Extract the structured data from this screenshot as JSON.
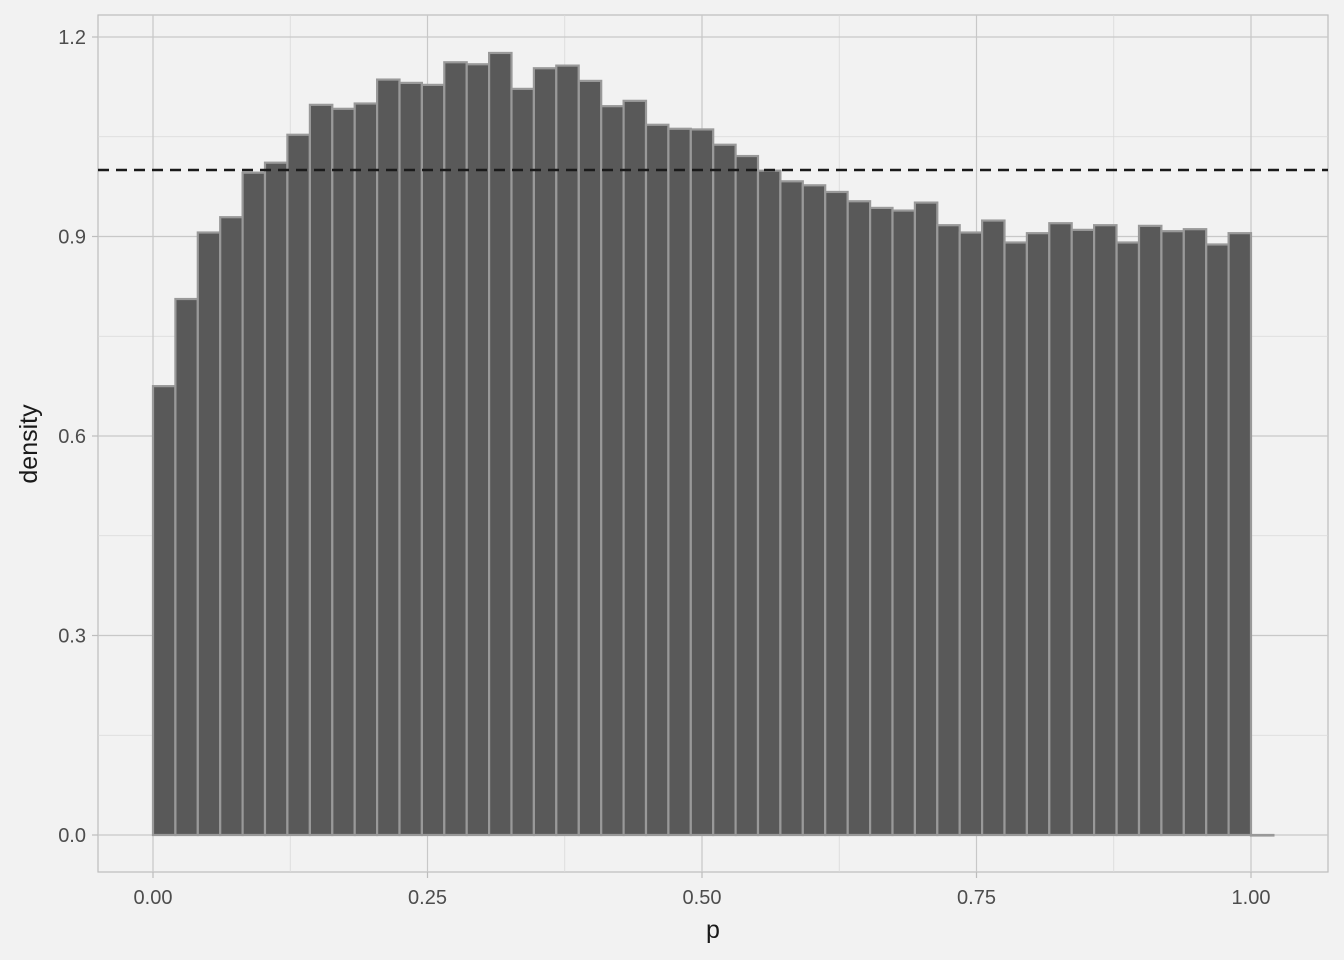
{
  "chart_data": {
    "type": "bar",
    "subtype": "histogram",
    "title": "",
    "xlabel": "p",
    "ylabel": "density",
    "xlim": [
      -0.1,
      2.725
    ],
    "ylim": [
      -0.06,
      1.23
    ],
    "x_ticks": [
      "0.00",
      "0.25",
      "0.50",
      "0.75",
      "1.00"
    ],
    "x_tick_values": [
      0.0,
      0.25,
      0.5,
      0.75,
      1.0
    ],
    "y_ticks": [
      "0.0",
      "0.3",
      "0.6",
      "0.9",
      "1.2"
    ],
    "y_tick_values": [
      0.0,
      0.3,
      0.6,
      0.9,
      1.2
    ],
    "bin_width": 0.0204,
    "bin_starts": [
      0.0,
      0.0204,
      0.0408,
      0.0612,
      0.0816,
      0.102,
      0.1224,
      0.1429,
      0.1633,
      0.1837,
      0.2041,
      0.2245,
      0.2449,
      0.2653,
      0.2857,
      0.3061,
      0.3265,
      0.3469,
      0.3673,
      0.3878,
      0.4082,
      0.4286,
      0.449,
      0.4694,
      0.4898,
      0.5102,
      0.5306,
      0.551,
      0.5714,
      0.5918,
      0.6122,
      0.6327,
      0.6531,
      0.6735,
      0.6939,
      0.7143,
      0.7347,
      0.7551,
      0.7755,
      0.7959,
      0.8163,
      0.8367,
      0.8571,
      0.8776,
      0.898,
      0.9184,
      0.9388,
      0.9592,
      0.9796,
      1.0
    ],
    "values": [
      0.675,
      0.806,
      0.906,
      0.929,
      0.996,
      1.011,
      1.053,
      1.098,
      1.092,
      1.1,
      1.136,
      1.131,
      1.128,
      1.162,
      1.159,
      1.176,
      1.122,
      1.153,
      1.157,
      1.134,
      1.096,
      1.104,
      1.068,
      1.062,
      1.061,
      1.038,
      1.021,
      0.999,
      0.983,
      0.977,
      0.967,
      0.953,
      0.943,
      0.939,
      0.951,
      0.917,
      0.906,
      0.924,
      0.891,
      0.905,
      0.92,
      0.91,
      0.917,
      0.891,
      0.916,
      0.908,
      0.911,
      0.888,
      0.905,
      0.0
    ],
    "reference_line": {
      "y": 1.0,
      "style": "dashed",
      "color": "#1a1a1a"
    },
    "bar_fill": "#595959",
    "bar_outline": "#999999",
    "panel_background": "#f2f2f2",
    "grid": true,
    "grid_color": "#c8c8c8",
    "legend": "none"
  }
}
